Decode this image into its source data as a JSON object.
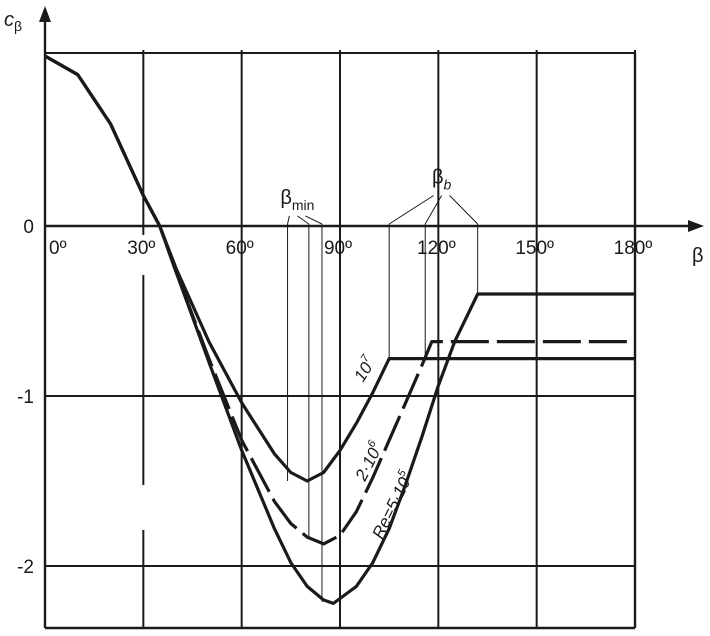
{
  "chart_data": {
    "type": "line",
    "xlabel": "β",
    "ylabel": "c",
    "ylabel_sub": "β",
    "xlim": [
      0,
      180
    ],
    "ylim": [
      -2.45,
      1.05
    ],
    "x_ticks": [
      0,
      30,
      60,
      90,
      120,
      150,
      180
    ],
    "x_tick_labels": [
      "0º",
      "30º",
      "60º",
      "90º",
      "120º",
      "150º",
      "180º"
    ],
    "y_ticks": [
      0,
      -1,
      -2
    ],
    "y_tick_labels": [
      "0",
      "-1",
      "-2"
    ],
    "grid": true,
    "series": [
      {
        "name": "10",
        "name_sup": "7",
        "dash": "solid",
        "points": [
          [
            0,
            1.0
          ],
          [
            10,
            0.89
          ],
          [
            20,
            0.6
          ],
          [
            30,
            0.18
          ],
          [
            35,
            0.0
          ],
          [
            40,
            -0.25
          ],
          [
            50,
            -0.68
          ],
          [
            60,
            -1.04
          ],
          [
            70,
            -1.34
          ],
          [
            75,
            -1.45
          ],
          [
            80,
            -1.5
          ],
          [
            85,
            -1.45
          ],
          [
            90,
            -1.32
          ],
          [
            95,
            -1.16
          ],
          [
            100,
            -0.98
          ],
          [
            105,
            -0.78
          ],
          [
            180,
            -0.78
          ]
        ]
      },
      {
        "name": "2·10",
        "name_sup": "6",
        "dash": "segmented",
        "points": [
          [
            0,
            1.0
          ],
          [
            10,
            0.89
          ],
          [
            20,
            0.6
          ],
          [
            30,
            0.18
          ],
          [
            35,
            0.0
          ],
          [
            40,
            -0.27
          ],
          [
            50,
            -0.78
          ],
          [
            60,
            -1.26
          ],
          [
            70,
            -1.62
          ],
          [
            75,
            -1.75
          ],
          [
            80,
            -1.83
          ],
          [
            85,
            -1.87
          ],
          [
            90,
            -1.82
          ],
          [
            95,
            -1.68
          ],
          [
            100,
            -1.48
          ],
          [
            105,
            -1.26
          ],
          [
            110,
            -1.04
          ],
          [
            115,
            -0.82
          ],
          [
            118,
            -0.68
          ],
          [
            180,
            -0.68
          ]
        ]
      },
      {
        "name": "Re=5·10",
        "name_sup": "5",
        "dash": "solid",
        "points": [
          [
            0,
            1.0
          ],
          [
            10,
            0.89
          ],
          [
            20,
            0.6
          ],
          [
            30,
            0.18
          ],
          [
            35,
            0.0
          ],
          [
            40,
            -0.27
          ],
          [
            50,
            -0.8
          ],
          [
            60,
            -1.32
          ],
          [
            70,
            -1.78
          ],
          [
            75,
            -1.98
          ],
          [
            80,
            -2.12
          ],
          [
            85,
            -2.2
          ],
          [
            88,
            -2.22
          ],
          [
            95,
            -2.12
          ],
          [
            100,
            -1.98
          ],
          [
            105,
            -1.78
          ],
          [
            110,
            -1.52
          ],
          [
            115,
            -1.24
          ],
          [
            120,
            -0.94
          ],
          [
            125,
            -0.68
          ],
          [
            132,
            -0.4
          ],
          [
            180,
            -0.4
          ]
        ]
      }
    ],
    "annotations": [
      {
        "text": "β",
        "sub": "min",
        "x": 77,
        "y": 0.13,
        "targets": [
          [
            74,
            -1.5
          ],
          [
            80.5,
            -1.83
          ],
          [
            84.5,
            -2.21
          ]
        ]
      },
      {
        "text": "β",
        "sub": "b",
        "x": 121,
        "y": 0.25,
        "targets": [
          [
            105,
            -0.78
          ],
          [
            116,
            -0.78
          ],
          [
            132,
            -0.4
          ]
        ]
      }
    ]
  }
}
